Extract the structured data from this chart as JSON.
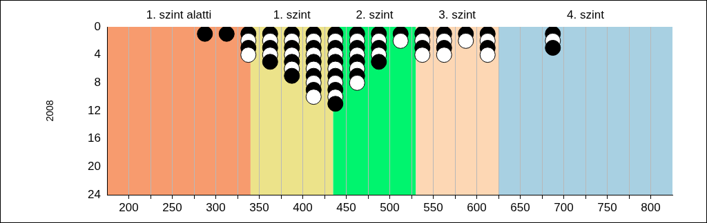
{
  "chart_data": {
    "type": "scatter",
    "ylabel": "2008",
    "xlim": [
      175,
      825
    ],
    "ylim": [
      24,
      0
    ],
    "xticks": [
      200,
      {
        "value": 225,
        "label": null
      },
      250,
      {
        "value": 275,
        "label": null
      },
      300,
      {
        "value": 325,
        "label": null
      },
      350,
      {
        "value": 375,
        "label": null
      },
      400,
      {
        "value": 425,
        "label": null
      },
      450,
      {
        "value": 475,
        "label": null
      },
      500,
      {
        "value": 525,
        "label": null
      },
      550,
      {
        "value": 575,
        "label": null
      },
      600,
      {
        "value": 625,
        "label": null
      },
      650,
      {
        "value": 675,
        "label": null
      },
      700,
      {
        "value": 725,
        "label": null
      },
      750,
      {
        "value": 775,
        "label": null
      },
      800
    ],
    "yticks": [
      0,
      4,
      8,
      12,
      16,
      20,
      24
    ],
    "grid": "x",
    "marker": "circle",
    "legend": false,
    "bands": [
      {
        "axis": "x",
        "from": 175,
        "to": 340,
        "label": "1. szint alatti",
        "color": "#f79b6e"
      },
      {
        "axis": "x",
        "from": 340,
        "to": 435,
        "label": "1. szint",
        "color": "#ece38a"
      },
      {
        "axis": "x",
        "from": 435,
        "to": 530,
        "label": "2. szint",
        "color": "#00f46e"
      },
      {
        "axis": "x",
        "from": 530,
        "to": 625,
        "label": "3. szint",
        "color": "#fdd7b4"
      },
      {
        "axis": "x",
        "from": 625,
        "to": 825,
        "label": "4. szint",
        "color": "#a8d0e2"
      }
    ],
    "series": [
      {
        "x": [
          287.5,
          312.5,
          337.5,
          337.5,
          337.5,
          337.5,
          362.5,
          362.5,
          362.5,
          362.5,
          362.5,
          387.5,
          387.5,
          387.5,
          387.5,
          387.5,
          387.5,
          387.5,
          412.5,
          412.5,
          412.5,
          412.5,
          412.5,
          412.5,
          412.5,
          412.5,
          412.5,
          412.5,
          437.5,
          437.5,
          437.5,
          437.5,
          437.5,
          437.5,
          437.5,
          437.5,
          437.5,
          437.5,
          437.5,
          462.5,
          462.5,
          462.5,
          462.5,
          462.5,
          462.5,
          462.5,
          462.5,
          487.5,
          487.5,
          487.5,
          487.5,
          487.5,
          512.5,
          512.5,
          537.5,
          537.5,
          537.5,
          537.5,
          562.5,
          562.5,
          562.5,
          562.5,
          587.5,
          587.5,
          612.5,
          612.5,
          612.5,
          612.5,
          687.5,
          687.5,
          687.5
        ],
        "values": [
          1,
          1,
          1,
          2,
          3,
          4,
          1,
          2,
          3,
          4,
          5,
          1,
          2,
          3,
          4,
          5,
          6,
          7,
          1,
          2,
          3,
          4,
          5,
          6,
          7,
          8,
          9,
          10,
          1,
          2,
          3,
          4,
          5,
          6,
          7,
          8,
          9,
          10,
          11,
          1,
          2,
          3,
          4,
          5,
          6,
          7,
          8,
          1,
          2,
          3,
          4,
          5,
          1,
          2,
          1,
          2,
          3,
          4,
          1,
          2,
          3,
          4,
          1,
          2,
          1,
          2,
          3,
          4,
          1,
          2,
          3
        ],
        "colors": [
          "#000000",
          "#000000",
          "#000000",
          "#ffffff",
          "#000000",
          "#ffffff",
          "#000000",
          "#ffffff",
          "#000000",
          "#ffffff",
          "#000000",
          "#000000",
          "#ffffff",
          "#000000",
          "#ffffff",
          "#000000",
          "#ffffff",
          "#000000",
          "#000000",
          "#ffffff",
          "#000000",
          "#ffffff",
          "#000000",
          "#ffffff",
          "#000000",
          "#ffffff",
          "#000000",
          "#ffffff",
          "#000000",
          "#ffffff",
          "#000000",
          "#ffffff",
          "#000000",
          "#ffffff",
          "#000000",
          "#ffffff",
          "#000000",
          "#ffffff",
          "#000000",
          "#000000",
          "#ffffff",
          "#000000",
          "#ffffff",
          "#000000",
          "#ffffff",
          "#000000",
          "#ffffff",
          "#000000",
          "#ffffff",
          "#000000",
          "#ffffff",
          "#000000",
          "#000000",
          "#ffffff",
          "#000000",
          "#ffffff",
          "#000000",
          "#ffffff",
          "#000000",
          "#ffffff",
          "#000000",
          "#ffffff",
          "#000000",
          "#ffffff",
          "#000000",
          "#ffffff",
          "#000000",
          "#ffffff",
          "#000000",
          "#ffffff",
          "#000000"
        ]
      }
    ]
  }
}
